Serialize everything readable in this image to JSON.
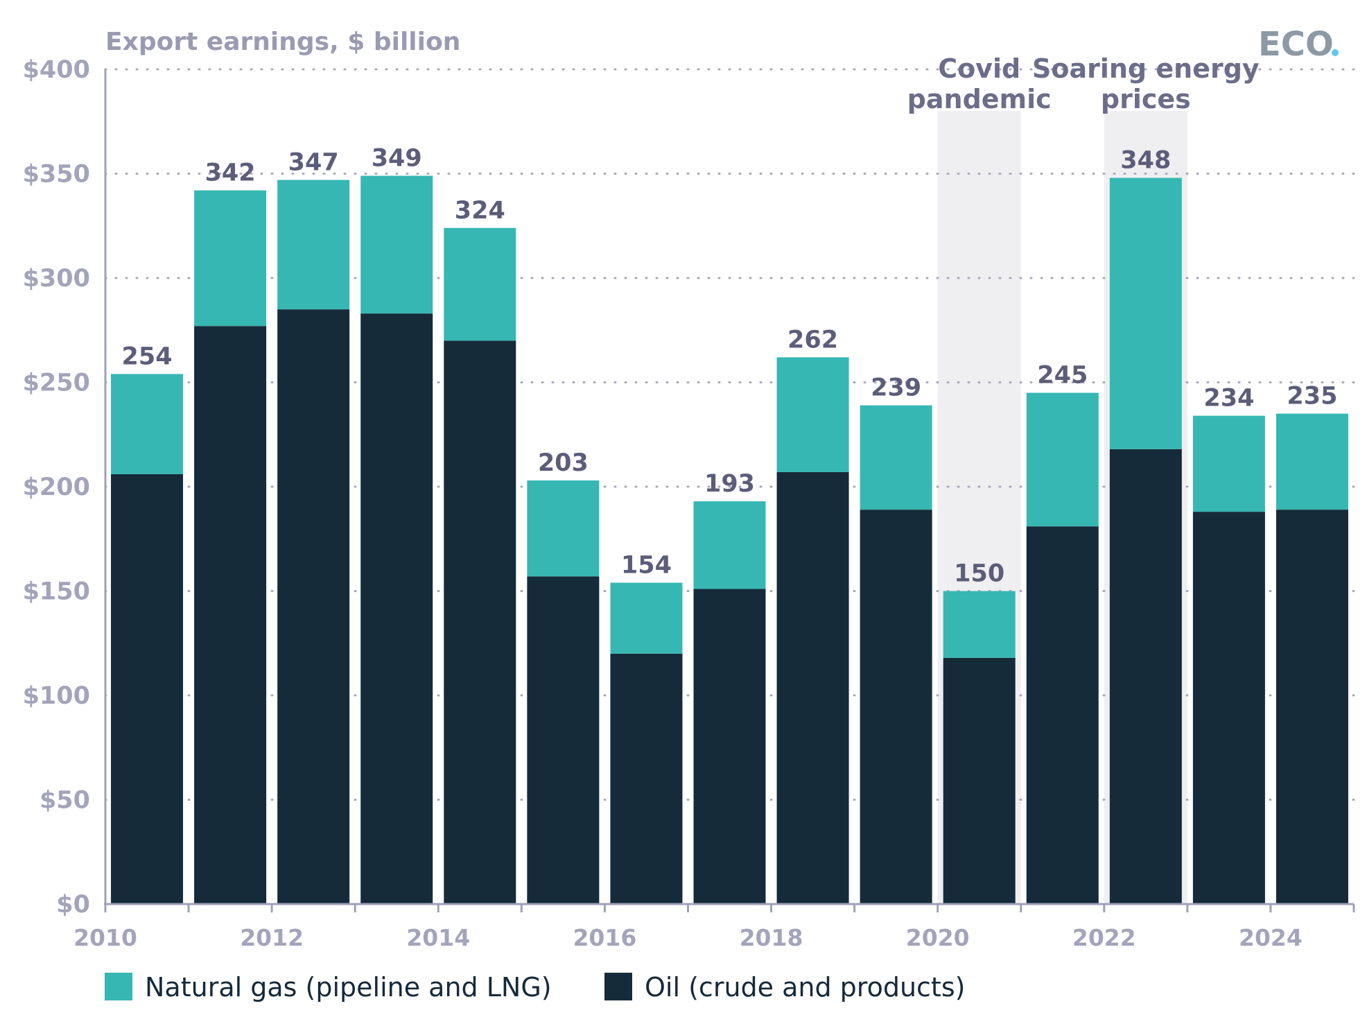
{
  "chart_data": {
    "type": "bar",
    "stacked": true,
    "ylabel": "Export earnings, $ billion",
    "ylim": [
      0,
      400
    ],
    "yticks": [
      0,
      50,
      100,
      150,
      200,
      250,
      300,
      350,
      400
    ],
    "ytick_labels": [
      "$0",
      "$50",
      "$100",
      "$150",
      "$200",
      "$250",
      "$300",
      "$350",
      "$400"
    ],
    "grid": "horizontal dotted",
    "categories": [
      "2010",
      "2011",
      "2012",
      "2013",
      "2014",
      "2015",
      "2016",
      "2017",
      "2018",
      "2019",
      "2020",
      "2021",
      "2022",
      "2023",
      "2024"
    ],
    "xtick_labels": [
      "2010",
      "2012",
      "2014",
      "2016",
      "2018",
      "2020",
      "2022",
      "2024"
    ],
    "series": [
      {
        "name": "Oil (crude and products)",
        "color": "#152b3a",
        "values": [
          206,
          277,
          285,
          283,
          270,
          157,
          120,
          151,
          207,
          189,
          118,
          181,
          218,
          188,
          189
        ]
      },
      {
        "name": "Natural gas (pipeline and LNG)",
        "color": "#37b7b3",
        "values": [
          48,
          65,
          62,
          66,
          54,
          46,
          34,
          42,
          55,
          50,
          32,
          64,
          130,
          46,
          46
        ]
      }
    ],
    "totals": [
      "254",
      "342",
      "347",
      "349",
      "324",
      "203",
      "154",
      "193",
      "262",
      "239",
      "150",
      "245",
      "348",
      "234",
      "235"
    ],
    "annotations": [
      {
        "category": "2020",
        "lines": [
          "Covid",
          "pandemic"
        ]
      },
      {
        "category": "2022",
        "lines": [
          "Soaring energy",
          "prices"
        ]
      }
    ],
    "legend_position": "bottom-left"
  },
  "logo": {
    "text": "ECO",
    "dot_color": "#5fc7ef"
  }
}
